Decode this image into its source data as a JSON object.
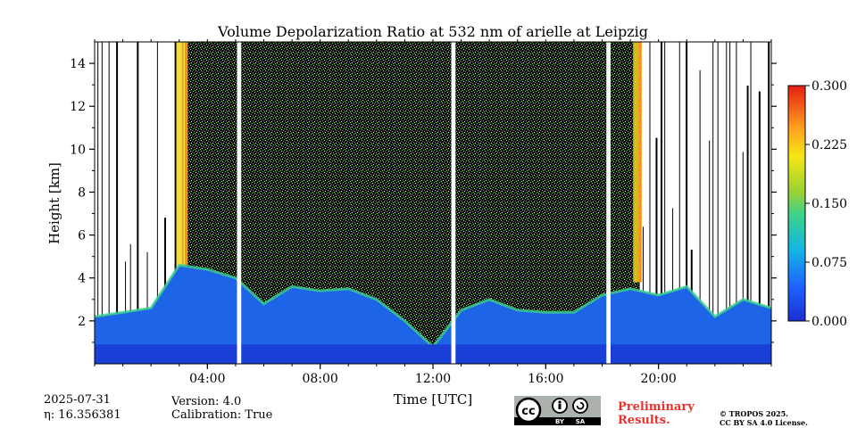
{
  "chart_data": {
    "type": "heatmap",
    "title": "Volume Depolarization Ratio at 532 nm of arielle at Leipzig",
    "xlabel": "Time [UTC]",
    "ylabel": "Height [km]",
    "xlim": [
      0,
      24
    ],
    "ylim": [
      0,
      15
    ],
    "xtick_labels": [
      "04:00",
      "08:00",
      "12:00",
      "16:00",
      "20:00"
    ],
    "xtick_values": [
      4,
      8,
      12,
      16,
      20
    ],
    "ytick_values": [
      2,
      4,
      6,
      8,
      10,
      12,
      14
    ],
    "ytick_labels": [
      "2",
      "4",
      "6",
      "8",
      "10",
      "12",
      "14"
    ],
    "colorbar": {
      "min": 0.0,
      "max": 0.3,
      "tick_labels": [
        "0.000",
        "0.075",
        "0.150",
        "0.225",
        "0.300"
      ],
      "tick_values": [
        0.0,
        0.075,
        0.15,
        0.225,
        0.3
      ],
      "colormap": "jet"
    },
    "data_gaps_utc": [
      [
        5.05,
        5.2
      ],
      [
        12.65,
        12.8
      ],
      [
        18.15,
        18.3
      ]
    ],
    "low_layer_top_km": [
      [
        0,
        2.2
      ],
      [
        1,
        2.4
      ],
      [
        2,
        2.6
      ],
      [
        3,
        4.6
      ],
      [
        4,
        4.4
      ],
      [
        5,
        4.0
      ],
      [
        6,
        2.8
      ],
      [
        7,
        3.6
      ],
      [
        8,
        3.4
      ],
      [
        9,
        3.5
      ],
      [
        10,
        3.0
      ],
      [
        11,
        2.0
      ],
      [
        12,
        0.8
      ],
      [
        13,
        2.5
      ],
      [
        14,
        3.0
      ],
      [
        15,
        2.5
      ],
      [
        16,
        2.4
      ],
      [
        17,
        2.4
      ],
      [
        18,
        3.2
      ],
      [
        19,
        3.5
      ],
      [
        20,
        3.2
      ],
      [
        21,
        3.6
      ],
      [
        22,
        2.2
      ],
      [
        23,
        3.0
      ],
      [
        24,
        2.6
      ]
    ]
  },
  "footer": {
    "date": "2025-07-31",
    "eta": "η: 16.356381",
    "version": "Version: 4.0",
    "calibration": "Calibration: True",
    "preliminary_line1": "Preliminary",
    "preliminary_line2": "Results.",
    "copyright_line1": "© TROPOS 2025.",
    "copyright_line2": "CC BY SA 4.0 License.",
    "cc_logo_text": "cc",
    "cc_by": "BY",
    "cc_sa": "SA"
  },
  "colors": {
    "axis": "#000000",
    "background": "#ffffff",
    "preliminary": "#e8322e"
  }
}
